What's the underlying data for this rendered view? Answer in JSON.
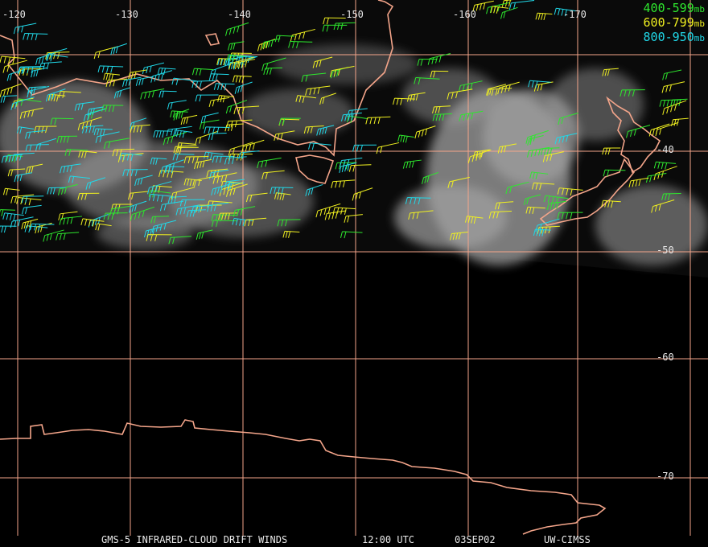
{
  "grid": {
    "lon_labels": [
      "-120",
      "-130",
      "-140",
      "-150",
      "-160",
      "-170"
    ],
    "lat_labels": [
      "-40",
      "-50",
      "-60",
      "-70"
    ],
    "color": "#f4a58a"
  },
  "legend": [
    {
      "range": "400-599",
      "unit": "mb",
      "color": "#2ee82e"
    },
    {
      "range": "600-799",
      "unit": "mb",
      "color": "#f0f020"
    },
    {
      "range": "800-950",
      "unit": "mb",
      "color": "#20d8e8"
    }
  ],
  "footer": {
    "product": "GMS-5 INFRARED-CLOUD DRIFT WINDS",
    "time": "12:00 UTC",
    "date": "03SEP02",
    "source": "UW-CIMSS"
  },
  "colors": {
    "background": "#000000",
    "coastline": "#f4a58a",
    "cloud": "#d8d8d8"
  }
}
